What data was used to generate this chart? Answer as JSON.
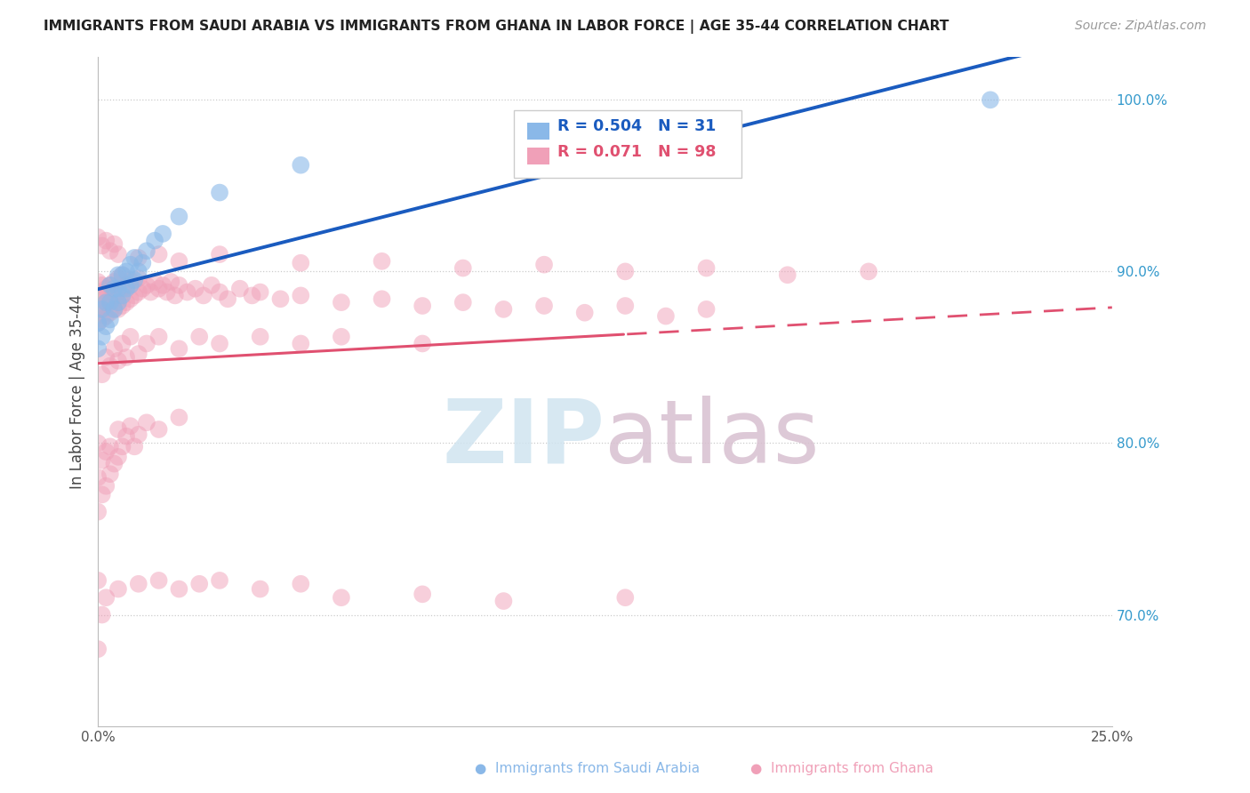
{
  "title": "IMMIGRANTS FROM SAUDI ARABIA VS IMMIGRANTS FROM GHANA IN LABOR FORCE | AGE 35-44 CORRELATION CHART",
  "source": "Source: ZipAtlas.com",
  "ylabel": "In Labor Force | Age 35-44",
  "xmin": 0.0,
  "xmax": 0.25,
  "ymin": 0.635,
  "ymax": 1.025,
  "yticks": [
    0.7,
    0.8,
    0.9,
    1.0
  ],
  "ytick_labels": [
    "70.0%",
    "80.0%",
    "90.0%",
    "100.0%"
  ],
  "xtick_labels": [
    "0.0%",
    "25.0%"
  ],
  "legend_R1": "R = 0.504",
  "legend_N1": "N = 31",
  "legend_R2": "R = 0.071",
  "legend_N2": "N = 98",
  "color_saudi": "#8ab8e8",
  "color_ghana": "#f0a0b8",
  "trend_color_saudi": "#1a5bbf",
  "trend_color_ghana": "#e05070",
  "watermark_zip_color": "#d0e4f0",
  "watermark_atlas_color": "#d8c0d0",
  "saudi_x": [
    0.0,
    0.0,
    0.001,
    0.001,
    0.002,
    0.002,
    0.003,
    0.003,
    0.003,
    0.004,
    0.004,
    0.005,
    0.005,
    0.005,
    0.006,
    0.006,
    0.007,
    0.007,
    0.008,
    0.008,
    0.009,
    0.009,
    0.01,
    0.011,
    0.012,
    0.014,
    0.016,
    0.02,
    0.03,
    0.05,
    0.22
  ],
  "saudi_y": [
    0.855,
    0.87,
    0.862,
    0.878,
    0.868,
    0.882,
    0.872,
    0.882,
    0.892,
    0.878,
    0.89,
    0.882,
    0.89,
    0.898,
    0.886,
    0.898,
    0.89,
    0.9,
    0.892,
    0.904,
    0.895,
    0.908,
    0.9,
    0.905,
    0.912,
    0.918,
    0.922,
    0.932,
    0.946,
    0.962,
    1.0
  ],
  "ghana_x": [
    0.0,
    0.0,
    0.0,
    0.0,
    0.0,
    0.001,
    0.001,
    0.001,
    0.001,
    0.002,
    0.002,
    0.002,
    0.003,
    0.003,
    0.003,
    0.004,
    0.004,
    0.004,
    0.005,
    0.005,
    0.005,
    0.006,
    0.006,
    0.006,
    0.007,
    0.007,
    0.008,
    0.008,
    0.009,
    0.01,
    0.01,
    0.011,
    0.012,
    0.013,
    0.014,
    0.015,
    0.016,
    0.017,
    0.018,
    0.019,
    0.02,
    0.022,
    0.024,
    0.026,
    0.028,
    0.03,
    0.032,
    0.035,
    0.038,
    0.04,
    0.045,
    0.05,
    0.06,
    0.07,
    0.08,
    0.09,
    0.1,
    0.11,
    0.12,
    0.13,
    0.14,
    0.15,
    0.001,
    0.002,
    0.003,
    0.004,
    0.005,
    0.006,
    0.007,
    0.008,
    0.01,
    0.012,
    0.015,
    0.02,
    0.025,
    0.03,
    0.04,
    0.05,
    0.06,
    0.08,
    0.0,
    0.001,
    0.002,
    0.003,
    0.004,
    0.005,
    0.01,
    0.015,
    0.02,
    0.03,
    0.05,
    0.07,
    0.09,
    0.11,
    0.13,
    0.15,
    0.17,
    0.19
  ],
  "ghana_y": [
    0.87,
    0.878,
    0.882,
    0.888,
    0.894,
    0.872,
    0.878,
    0.885,
    0.892,
    0.874,
    0.882,
    0.89,
    0.876,
    0.884,
    0.892,
    0.878,
    0.886,
    0.894,
    0.878,
    0.888,
    0.896,
    0.88,
    0.89,
    0.898,
    0.882,
    0.892,
    0.884,
    0.895,
    0.886,
    0.888,
    0.896,
    0.89,
    0.892,
    0.888,
    0.894,
    0.89,
    0.892,
    0.888,
    0.894,
    0.886,
    0.892,
    0.888,
    0.89,
    0.886,
    0.892,
    0.888,
    0.884,
    0.89,
    0.886,
    0.888,
    0.884,
    0.886,
    0.882,
    0.884,
    0.88,
    0.882,
    0.878,
    0.88,
    0.876,
    0.88,
    0.874,
    0.878,
    0.84,
    0.85,
    0.845,
    0.855,
    0.848,
    0.858,
    0.85,
    0.862,
    0.852,
    0.858,
    0.862,
    0.855,
    0.862,
    0.858,
    0.862,
    0.858,
    0.862,
    0.858,
    0.92,
    0.915,
    0.918,
    0.912,
    0.916,
    0.91,
    0.908,
    0.91,
    0.906,
    0.91,
    0.905,
    0.906,
    0.902,
    0.904,
    0.9,
    0.902,
    0.898,
    0.9
  ],
  "ghana_x_extra": [
    0.0,
    0.0,
    0.0,
    0.001,
    0.001,
    0.002,
    0.002,
    0.003,
    0.003,
    0.004,
    0.005,
    0.005,
    0.006,
    0.007,
    0.008,
    0.009,
    0.01,
    0.012,
    0.015,
    0.02
  ],
  "ghana_y_extra": [
    0.76,
    0.78,
    0.8,
    0.77,
    0.79,
    0.775,
    0.795,
    0.782,
    0.798,
    0.788,
    0.792,
    0.808,
    0.798,
    0.804,
    0.81,
    0.798,
    0.805,
    0.812,
    0.808,
    0.815
  ],
  "ghana_x_low": [
    0.0,
    0.0,
    0.001,
    0.002,
    0.005,
    0.01,
    0.015,
    0.02,
    0.025,
    0.03,
    0.04,
    0.05,
    0.06,
    0.08,
    0.1,
    0.13
  ],
  "ghana_y_low": [
    0.68,
    0.72,
    0.7,
    0.71,
    0.715,
    0.718,
    0.72,
    0.715,
    0.718,
    0.72,
    0.715,
    0.718,
    0.71,
    0.712,
    0.708,
    0.71
  ]
}
